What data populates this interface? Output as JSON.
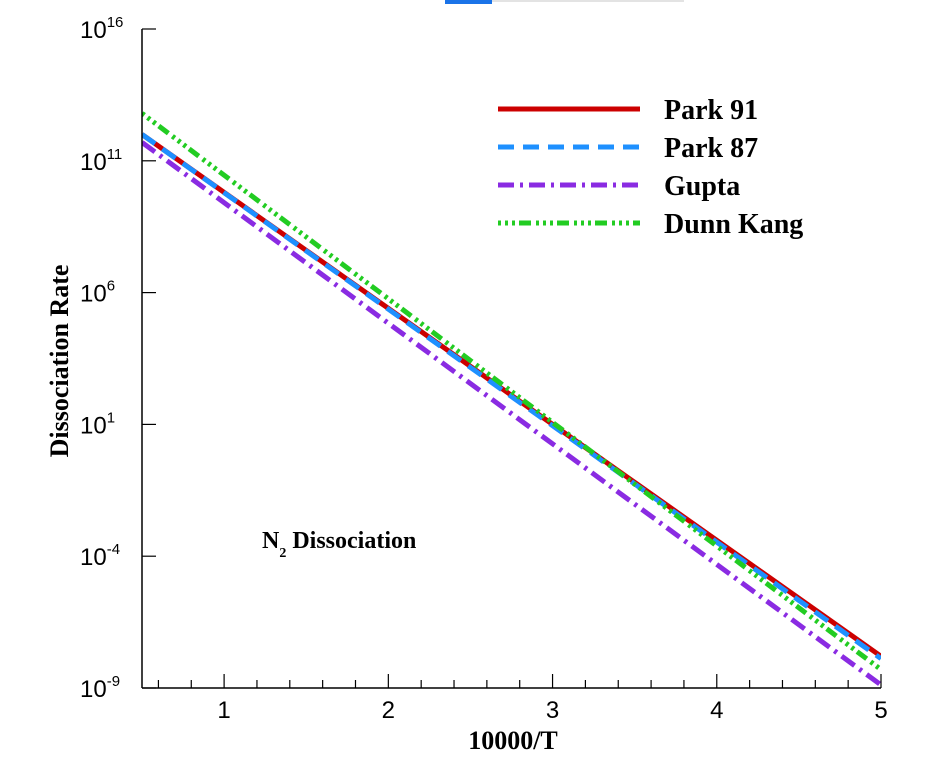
{
  "chart_data": {
    "type": "line",
    "xlabel": "10000/T",
    "ylabel": "Dissociation Rate",
    "xlim": [
      0.5,
      5
    ],
    "ylim_log10": [
      -9,
      16
    ],
    "yscale": "log",
    "grid": false,
    "legend_placement": "top-right",
    "x_ticks": [
      {
        "value": 1,
        "label": "1"
      },
      {
        "value": 2,
        "label": "2"
      },
      {
        "value": 3,
        "label": "3"
      },
      {
        "value": 4,
        "label": "4"
      },
      {
        "value": 5,
        "label": "5"
      }
    ],
    "y_ticks": [
      {
        "log10": 16,
        "base": "10",
        "exp": "16"
      },
      {
        "log10": 11,
        "base": "10",
        "exp": "11"
      },
      {
        "log10": 6,
        "base": "10",
        "exp": "6"
      },
      {
        "log10": 1,
        "base": "10",
        "exp": "1"
      },
      {
        "log10": -4,
        "base": "10",
        "exp": "-4"
      },
      {
        "log10": -9,
        "base": "10",
        "exp": "-9"
      }
    ],
    "annotation": {
      "main": "N",
      "sub": "2",
      "rest": " Dissociation"
    },
    "series": [
      {
        "name": "Park 91",
        "color": "#cc0000",
        "dash": "solid",
        "x": [
          0.5,
          5
        ],
        "y": [
          "1.0e12",
          "1.6e-8"
        ]
      },
      {
        "name": "Park 87",
        "color": "#1e90ff",
        "dash": "dash",
        "x": [
          0.5,
          5
        ],
        "y": [
          "1.0e12",
          "1.3e-8"
        ]
      },
      {
        "name": "Gupta",
        "color": "#8a2be2",
        "dash": "dashdot",
        "x": [
          0.5,
          5
        ],
        "y": [
          "5.0e11",
          "1.3e-9"
        ]
      },
      {
        "name": "Dunn Kang",
        "color": "#22cc22",
        "dash": "dashdotdot",
        "x": [
          0.5,
          5
        ],
        "y": [
          "6.3e12",
          "5.0e-9"
        ]
      }
    ]
  }
}
